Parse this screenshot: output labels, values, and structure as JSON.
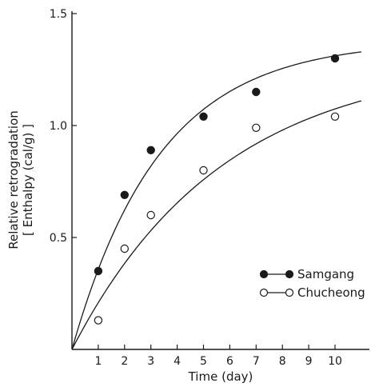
{
  "chart_data": {
    "type": "scatter",
    "xlabel": "Time (day)",
    "ylabel": "Relative retrogradation",
    "ylabel_sub": "[ Enthalpy (cal/g) ]",
    "xlim": [
      0,
      11
    ],
    "ylim": [
      0,
      1.5
    ],
    "x_ticks": [
      1,
      2,
      3,
      4,
      5,
      6,
      7,
      8,
      9,
      10
    ],
    "y_ticks": [
      0.5,
      1.0,
      1.5
    ],
    "y_tick_labels": [
      "0.5",
      "1.0",
      "1.5"
    ],
    "grid": false,
    "legend_position": "lower-right",
    "series": [
      {
        "name": "Samgang",
        "marker": "filled-circle",
        "x": [
          1,
          2,
          3,
          5,
          7,
          10
        ],
        "y": [
          0.35,
          0.69,
          0.89,
          1.04,
          1.15,
          1.3
        ],
        "fit": {
          "a": 1.38,
          "k": 0.3
        }
      },
      {
        "name": "Chucheong",
        "marker": "open-circle",
        "x": [
          1,
          2,
          3,
          5,
          7,
          10
        ],
        "y": [
          0.13,
          0.45,
          0.6,
          0.8,
          0.99,
          1.04
        ],
        "fit": {
          "a": 1.3,
          "k": 0.175
        }
      }
    ]
  }
}
